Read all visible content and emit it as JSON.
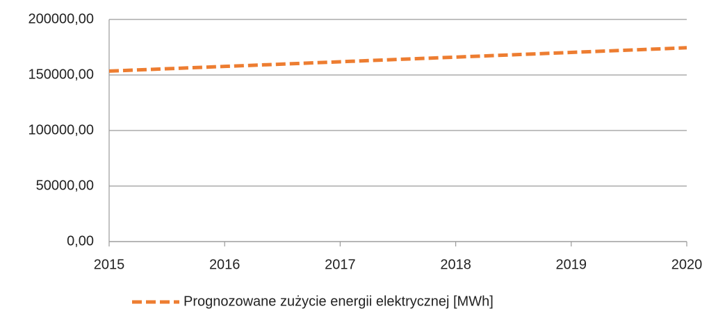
{
  "chart_data": {
    "type": "line",
    "x": [
      2015,
      2016,
      2017,
      2018,
      2019,
      2020
    ],
    "series": [
      {
        "name": "Prognozowane zużycie energii elektrycznej [MWh]",
        "color": "#ed7d31",
        "values": [
          153500,
          157700,
          161900,
          166100,
          170300,
          174500
        ]
      }
    ],
    "xlim": [
      2015,
      2020
    ],
    "xticks": [
      2015,
      2016,
      2017,
      2018,
      2019,
      2020
    ],
    "ylim": [
      0,
      200000
    ],
    "yticks": [
      {
        "value": 0,
        "label": "0,00"
      },
      {
        "value": 50000,
        "label": "50000,00"
      },
      {
        "value": 100000,
        "label": "100000,00"
      },
      {
        "value": 150000,
        "label": "150000,00"
      },
      {
        "value": 200000,
        "label": "200000,00"
      }
    ],
    "grid": true,
    "legend": "bottom",
    "dashed": true
  }
}
